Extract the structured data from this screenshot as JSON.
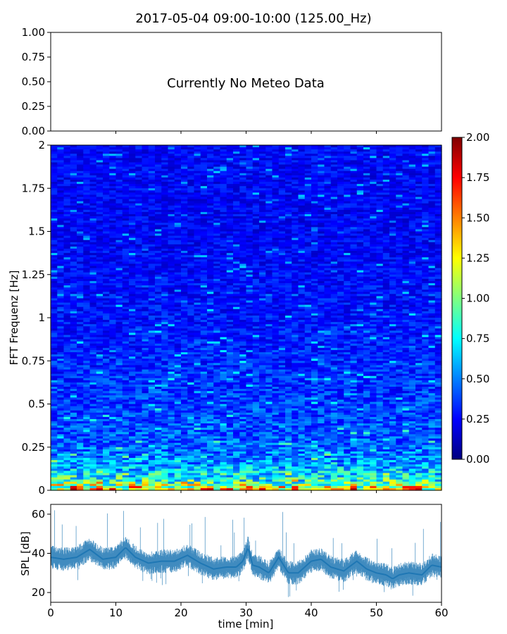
{
  "figure": {
    "title": "2017-05-04 09:00-10:00 (125.00_Hz)"
  },
  "chart_data": [
    {
      "type": "line",
      "panel": "meteo",
      "annotation": "Currently No Meteo Data",
      "ylim": [
        0,
        1
      ],
      "yticks": [
        "0.00",
        "0.25",
        "0.50",
        "0.75",
        "1.00"
      ],
      "xlim": [
        0,
        60
      ],
      "series": []
    },
    {
      "type": "heatmap",
      "panel": "spectrogram",
      "ylabel": "FFT Frequenz [Hz]",
      "xlim": [
        0,
        60
      ],
      "ylim": [
        0,
        2
      ],
      "yticks": [
        "0",
        "0.25",
        "0.5",
        "0.75",
        "1",
        "1.25",
        "1.5",
        "1.75",
        "2"
      ],
      "colormap": "jet",
      "colorbar": {
        "range": [
          0,
          2
        ],
        "ticks": [
          "0.00",
          "0.25",
          "0.50",
          "0.75",
          "1.00",
          "1.25",
          "1.50",
          "1.75",
          "2.00"
        ],
        "placement": "right"
      },
      "intensity_by_frequency_hz": [
        {
          "freq": 0.0,
          "level": 1.4
        },
        {
          "freq": 0.05,
          "level": 0.85
        },
        {
          "freq": 0.15,
          "level": 0.55
        },
        {
          "freq": 0.3,
          "level": 0.42
        },
        {
          "freq": 0.6,
          "level": 0.35
        },
        {
          "freq": 1.0,
          "level": 0.28
        },
        {
          "freq": 1.5,
          "level": 0.24
        },
        {
          "freq": 2.0,
          "level": 0.25
        }
      ]
    },
    {
      "type": "line",
      "panel": "spl",
      "ylabel": "SPL [dB]",
      "xlabel": "time [min]",
      "xlim": [
        0,
        60
      ],
      "ylim": [
        15,
        65
      ],
      "yticks": [
        20,
        40,
        60
      ],
      "xticks": [
        0,
        10,
        20,
        30,
        40,
        50,
        60
      ],
      "color": "#1f77b4",
      "series": [
        {
          "x": [
            0,
            2,
            4,
            6,
            8,
            10,
            11.5,
            13,
            15,
            17,
            19,
            21,
            23,
            25,
            27,
            28.5,
            29.5,
            30.3,
            31,
            32,
            33.5,
            35,
            36.5,
            38,
            40,
            41.5,
            43,
            45,
            47,
            48.5,
            50,
            51.5,
            52.5,
            53.5,
            55,
            57,
            58.5,
            60
          ],
          "y": [
            38,
            37,
            38,
            42,
            37,
            38,
            43,
            38,
            35,
            36,
            36,
            39,
            35,
            32,
            33,
            33,
            36,
            43,
            34,
            33,
            30,
            38,
            30,
            30,
            36,
            37,
            33,
            31,
            36,
            32,
            30,
            29,
            27,
            29,
            30,
            29,
            34,
            33
          ]
        }
      ]
    }
  ]
}
